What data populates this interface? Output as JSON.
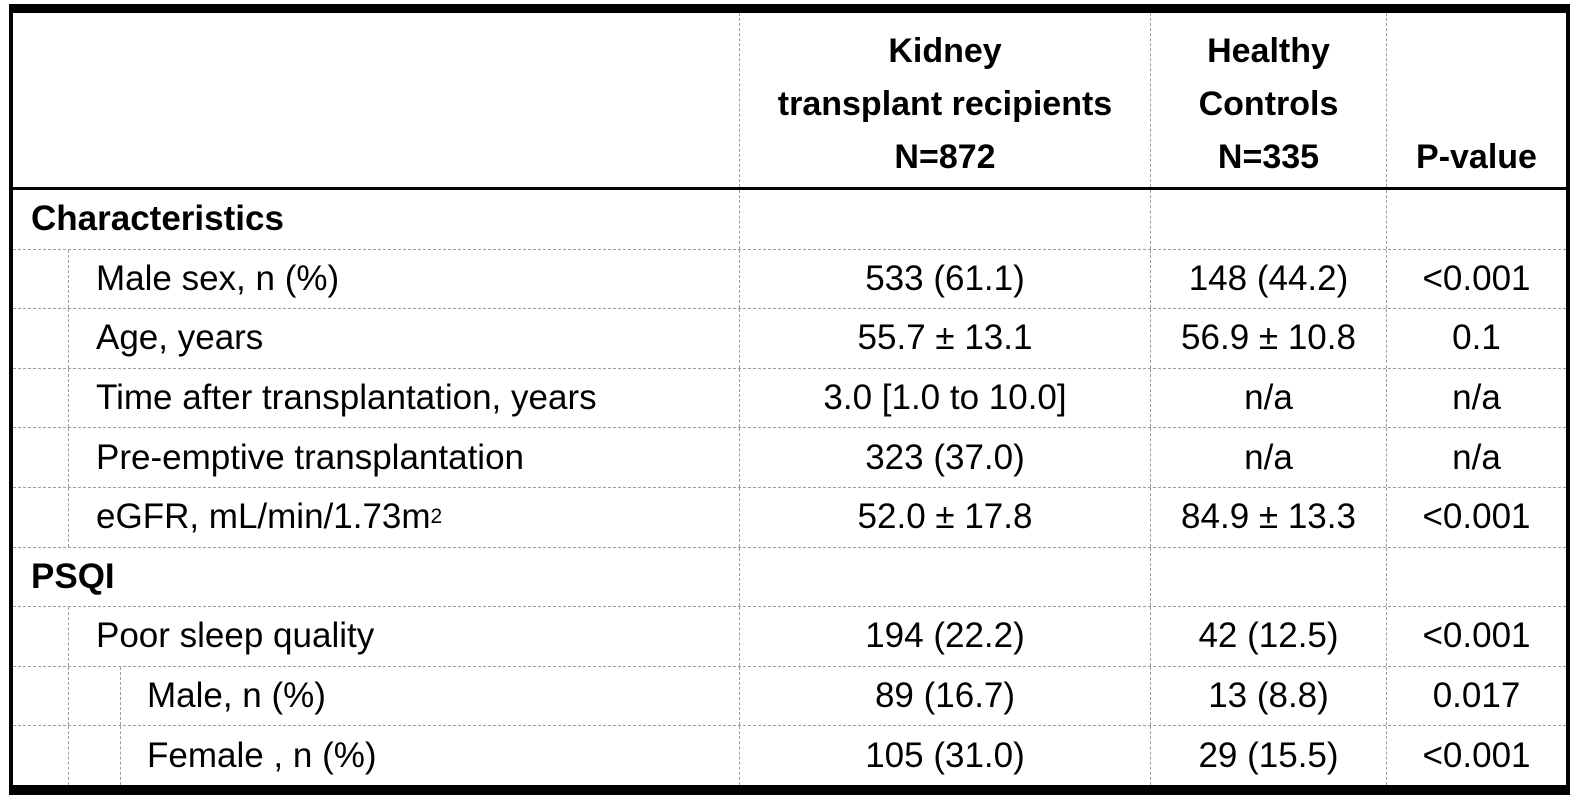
{
  "table": {
    "header": {
      "empty": "",
      "ktr_lines": [
        "Kidney",
        "transplant recipients",
        "N=872"
      ],
      "hc_lines": [
        "Healthy",
        "Controls",
        "N=335"
      ],
      "pv_lines": [
        "",
        "",
        "P-value"
      ]
    },
    "rows": [
      {
        "type": "section",
        "label": "Characteristics",
        "ktr": "",
        "hc": "",
        "p": ""
      },
      {
        "type": "item",
        "indent": 1,
        "label": "Male sex, n (%)",
        "ktr": "533 (61.1)",
        "hc": "148 (44.2)",
        "p": "<0.001"
      },
      {
        "type": "item",
        "indent": 1,
        "label": "Age, years",
        "ktr": "55.7 ± 13.1",
        "hc": "56.9 ± 10.8",
        "p": "0.1"
      },
      {
        "type": "item",
        "indent": 1,
        "label": "Time after transplantation, years",
        "ktr": "3.0 [1.0 to 10.0]",
        "hc": "n/a",
        "p": "n/a"
      },
      {
        "type": "item",
        "indent": 1,
        "label": "Pre-emptive transplantation",
        "ktr": "323 (37.0)",
        "hc": "n/a",
        "p": "n/a"
      },
      {
        "type": "item",
        "indent": 1,
        "label": "eGFR, mL/min/1.73m",
        "label_sup": "2",
        "ktr": "52.0 ± 17.8",
        "hc": "84.9 ± 13.3",
        "p": "<0.001"
      },
      {
        "type": "section",
        "label": "PSQI",
        "ktr": "",
        "hc": "",
        "p": ""
      },
      {
        "type": "item",
        "indent": 1,
        "label": "Poor sleep quality",
        "ktr": "194 (22.2)",
        "hc": "42 (12.5)",
        "p": "<0.001"
      },
      {
        "type": "item",
        "indent": 2,
        "label": "Male, n (%)",
        "ktr": "89 (16.7)",
        "hc": "13 (8.8)",
        "p": "0.017"
      },
      {
        "type": "item",
        "indent": 2,
        "label": "Female , n (%)",
        "ktr": "105 (31.0)",
        "hc": "29 (15.5)",
        "p": "<0.001"
      }
    ],
    "colors": {
      "border": "#000000",
      "gridline": "#9d9d9d",
      "text": "#000000",
      "background": "#ffffff"
    }
  }
}
